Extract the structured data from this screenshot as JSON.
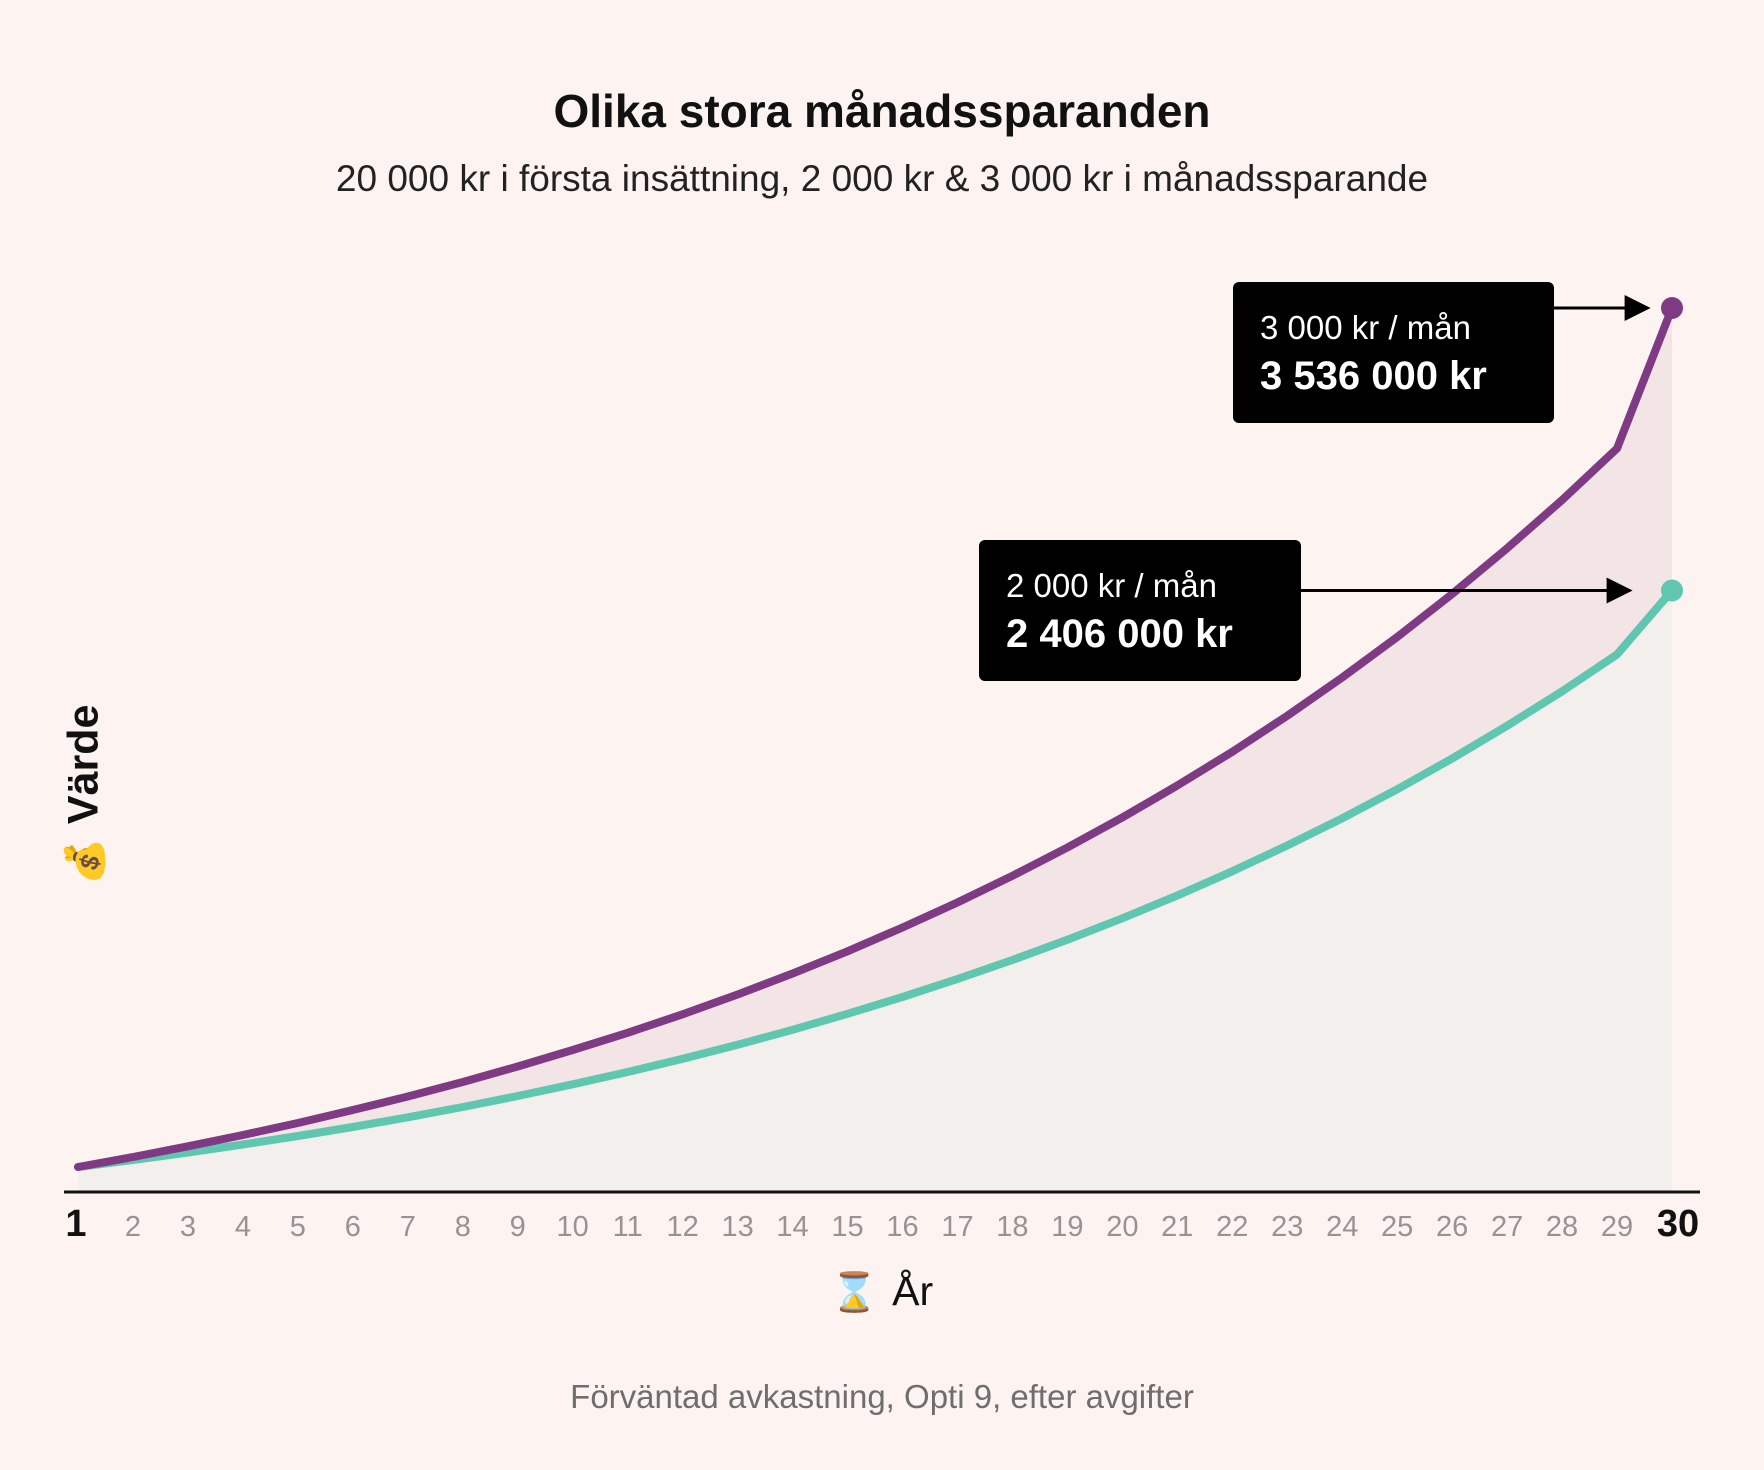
{
  "chart_data": {
    "type": "area",
    "title": "Olika stora månadssparanden",
    "subtitle": "20 000 kr i första insättning, 2 000 kr & 3 000 kr i månadssparande",
    "xlabel": "År",
    "ylabel": "Värde",
    "xlabel_icon": "hourglass-icon",
    "ylabel_icon": "money-bag-icon",
    "x": [
      1,
      2,
      3,
      4,
      5,
      6,
      7,
      8,
      9,
      10,
      11,
      12,
      13,
      14,
      15,
      16,
      17,
      18,
      19,
      20,
      21,
      22,
      23,
      24,
      25,
      26,
      27,
      28,
      29,
      30
    ],
    "x_tick_labels": [
      "1",
      "2",
      "3",
      "4",
      "5",
      "6",
      "7",
      "8",
      "9",
      "10",
      "11",
      "12",
      "13",
      "14",
      "15",
      "16",
      "17",
      "18",
      "19",
      "20",
      "21",
      "22",
      "23",
      "24",
      "25",
      "26",
      "27",
      "28",
      "29",
      "30"
    ],
    "xlim": [
      1,
      30
    ],
    "ylim": [
      0,
      4000000
    ],
    "y_axis_visible": false,
    "grid": false,
    "legend": "none",
    "series": [
      {
        "name": "2 000 kr / mån",
        "color": "#5fc6b0",
        "fill": "#f3efec",
        "values": [
          100000,
          128000,
          158000,
          190000,
          224000,
          260000,
          299000,
          340000,
          384000,
          431000,
          480000,
          533000,
          589000,
          649000,
          713000,
          780000,
          852000,
          928000,
          1009000,
          1095000,
          1186000,
          1283000,
          1386000,
          1495000,
          1611000,
          1734000,
          1865000,
          2003000,
          2150000,
          2406000
        ],
        "end_label": {
          "line1": "2 000 kr / mån",
          "line2": "2 406 000 kr"
        }
      },
      {
        "name": "3 000 kr / mån",
        "color": "#7e3a82",
        "fill": "#f3e4e6",
        "values": [
          100000,
          140000,
          183000,
          228000,
          276000,
          328000,
          382000,
          440000,
          502000,
          568000,
          637000,
          711000,
          790000,
          874000,
          963000,
          1058000,
          1158000,
          1265000,
          1378000,
          1498000,
          1626000,
          1761000,
          1905000,
          2058000,
          2220000,
          2392000,
          2575000,
          2768000,
          2974000,
          3536000
        ],
        "end_label": {
          "line1": "3 000 kr / mån",
          "line2": "3 536 000 kr"
        }
      }
    ]
  },
  "footnote": "Förväntad avkastning, Opti 9, efter avgifter"
}
